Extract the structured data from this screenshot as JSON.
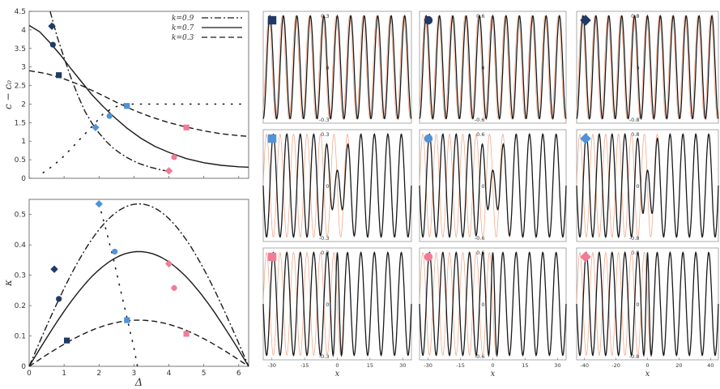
{
  "colors": {
    "dark_navy": "#1f3a68",
    "light_blue": "#4f93d8",
    "pink": "#f07c96",
    "curve": "#1a1a1a",
    "ref_wave": "#f0a080"
  },
  "chart_data": [
    {
      "id": "top-left",
      "type": "line",
      "xlim": [
        0,
        6.283
      ],
      "ylim": [
        0,
        4.5
      ],
      "ylabel": "c − c₀",
      "xticks": [
        0,
        1,
        2,
        3,
        4,
        5,
        6
      ],
      "xtick_labels": [
        "",
        "",
        "",
        "",
        "",
        "",
        ""
      ],
      "yticks": [
        0,
        0.5,
        1,
        1.5,
        2,
        2.5,
        3,
        3.5,
        4,
        4.5
      ],
      "ytick_labels": [
        "0",
        "0.5",
        "1",
        "1.5",
        "2",
        "2.5",
        "3",
        "3.5",
        "4",
        "4.5"
      ],
      "legend": {
        "placement": "top-right",
        "entries": [
          {
            "label": "k=0.9",
            "style": "dashdot"
          },
          {
            "label": "k=0.7",
            "style": "solid"
          },
          {
            "label": "k=0.3",
            "style": "dashed"
          }
        ]
      },
      "series": [
        {
          "style": "dashdot",
          "k": 0.9,
          "x": [
            0.6,
            0.8,
            1.0,
            1.2,
            1.4,
            1.6,
            1.8,
            2.0,
            2.2,
            2.4,
            2.6,
            2.8,
            3.0,
            3.2,
            3.5,
            3.8,
            4.0
          ],
          "y": [
            4.5,
            3.82,
            3.25,
            2.7,
            2.22,
            1.8,
            1.48,
            1.22,
            1.0,
            0.82,
            0.68,
            0.56,
            0.46,
            0.38,
            0.29,
            0.22,
            0.19
          ]
        },
        {
          "style": "solid",
          "k": 0.7,
          "x": [
            0,
            0.3,
            0.6,
            0.9,
            1.2,
            1.5,
            1.8,
            2.1,
            2.4,
            2.8,
            3.2,
            3.6,
            4.0,
            4.5,
            5.0,
            5.5,
            6.0,
            6.28
          ],
          "y": [
            4.12,
            3.95,
            3.65,
            3.32,
            2.95,
            2.6,
            2.25,
            1.95,
            1.68,
            1.35,
            1.08,
            0.86,
            0.7,
            0.53,
            0.42,
            0.35,
            0.31,
            0.3
          ]
        },
        {
          "style": "dashed",
          "k": 0.3,
          "x": [
            0,
            0.5,
            1.0,
            1.5,
            2.0,
            2.5,
            3.0,
            3.5,
            4.0,
            4.5,
            5.0,
            5.5,
            6.0,
            6.28
          ],
          "y": [
            2.9,
            2.82,
            2.68,
            2.5,
            2.28,
            2.05,
            1.83,
            1.65,
            1.5,
            1.38,
            1.28,
            1.2,
            1.15,
            1.13
          ]
        },
        {
          "style": "dotted",
          "x": [
            0.4,
            0.7,
            1.0,
            1.3,
            1.6,
            1.9,
            2.1,
            2.4,
            2.7,
            3.0,
            3.4,
            3.8,
            4.2,
            4.6,
            5.0,
            5.4,
            5.8,
            6.2
          ],
          "y": [
            0.15,
            0.35,
            0.6,
            0.9,
            1.2,
            1.5,
            1.72,
            1.9,
            2.0,
            2.0,
            2.0,
            2.0,
            2.0,
            2.0,
            2.0,
            2.0,
            2.0,
            2.0
          ]
        }
      ],
      "markers": [
        {
          "shape": "diamond",
          "color": "dark_navy",
          "x": 0.65,
          "y": 4.1
        },
        {
          "shape": "circle",
          "color": "dark_navy",
          "x": 0.68,
          "y": 3.6
        },
        {
          "shape": "square",
          "color": "dark_navy",
          "x": 0.85,
          "y": 2.78
        },
        {
          "shape": "diamond",
          "color": "light_blue",
          "x": 1.9,
          "y": 1.37
        },
        {
          "shape": "circle",
          "color": "light_blue",
          "x": 2.3,
          "y": 1.68
        },
        {
          "shape": "square",
          "color": "light_blue",
          "x": 2.8,
          "y": 1.95
        },
        {
          "shape": "diamond",
          "color": "pink",
          "x": 4.0,
          "y": 0.2
        },
        {
          "shape": "circle",
          "color": "pink",
          "x": 4.15,
          "y": 0.57
        },
        {
          "shape": "square",
          "color": "pink",
          "x": 4.5,
          "y": 1.37
        }
      ]
    },
    {
      "id": "bottom-left",
      "type": "line",
      "xlim": [
        0,
        6.283
      ],
      "ylim": [
        0,
        0.55
      ],
      "xlabel": "Δ",
      "ylabel": "κ",
      "xticks": [
        0,
        1,
        2,
        3,
        4,
        5,
        6
      ],
      "xtick_labels": [
        "0",
        "1",
        "2",
        "3",
        "4",
        "5",
        "6"
      ],
      "yticks": [
        0,
        0.1,
        0.2,
        0.3,
        0.4,
        0.5
      ],
      "ytick_labels": [
        "0",
        "0.1",
        "0.2",
        "0.3",
        "0.4",
        "0.5"
      ],
      "series": [
        {
          "style": "dashdot",
          "k": 0.9,
          "fn": "sin_half",
          "amp": 0.535
        },
        {
          "style": "solid",
          "k": 0.7,
          "fn": "sin_half",
          "amp": 0.378
        },
        {
          "style": "dashed",
          "k": 0.3,
          "fn": "sin_half",
          "amp": 0.152
        },
        {
          "style": "dotted",
          "x": [
            2.0,
            2.2,
            2.4,
            2.6,
            2.8,
            3.0,
            3.1
          ],
          "y": [
            0.535,
            0.45,
            0.36,
            0.26,
            0.16,
            0.06,
            0.0
          ]
        }
      ],
      "markers": [
        {
          "shape": "diamond",
          "color": "dark_navy",
          "x": 0.72,
          "y": 0.32
        },
        {
          "shape": "circle",
          "color": "dark_navy",
          "x": 0.85,
          "y": 0.222
        },
        {
          "shape": "square",
          "color": "dark_navy",
          "x": 1.08,
          "y": 0.085
        },
        {
          "shape": "diamond",
          "color": "light_blue",
          "x": 2.0,
          "y": 0.535
        },
        {
          "shape": "circle",
          "color": "light_blue",
          "x": 2.45,
          "y": 0.378
        },
        {
          "shape": "square",
          "color": "light_blue",
          "x": 2.8,
          "y": 0.152
        },
        {
          "shape": "diamond",
          "color": "pink",
          "x": 4.0,
          "y": 0.338
        },
        {
          "shape": "circle",
          "color": "pink",
          "x": 4.15,
          "y": 0.258
        },
        {
          "shape": "square",
          "color": "pink",
          "x": 4.5,
          "y": 0.107
        }
      ]
    },
    {
      "id": "wave-grid",
      "type": "line",
      "xlabel": "x",
      "panels": [
        {
          "row": 0,
          "col": 0,
          "marker": "square",
          "color": "dark_navy",
          "xlim": [
            -34,
            34
          ],
          "ylim": [
            -0.3,
            0.3
          ],
          "yticks": [
            -0.3,
            0,
            0.3
          ],
          "ytick_labels": [
            "-0.3",
            "0",
            "0.3"
          ],
          "periods": 11,
          "defect": 0,
          "ref_shift": 0.18
        },
        {
          "row": 0,
          "col": 1,
          "marker": "circle",
          "color": "dark_navy",
          "xlim": [
            -34,
            34
          ],
          "ylim": [
            -0.6,
            0.6
          ],
          "yticks": [
            -0.6,
            0,
            0.6
          ],
          "ytick_labels": [
            "-0.6",
            "0",
            "0.6"
          ],
          "periods": 11,
          "defect": 0,
          "ref_shift": 0.18
        },
        {
          "row": 0,
          "col": 2,
          "marker": "diamond",
          "color": "dark_navy",
          "xlim": [
            -45,
            45
          ],
          "ylim": [
            -0.8,
            0.8
          ],
          "yticks": [
            -0.8,
            0,
            0.8
          ],
          "ytick_labels": [
            "-0.8",
            "0",
            "0.8"
          ],
          "periods": 11,
          "defect": 0,
          "ref_shift": 0.18
        },
        {
          "row": 1,
          "col": 0,
          "marker": "square",
          "color": "light_blue",
          "xlim": [
            -34,
            34
          ],
          "ylim": [
            -0.3,
            0.3
          ],
          "yticks": [
            -0.3,
            0,
            0.3
          ],
          "ytick_labels": [
            "-0.3",
            "0",
            "0.3"
          ],
          "periods": 11,
          "defect": 1,
          "ref_shift": 0.5
        },
        {
          "row": 1,
          "col": 1,
          "marker": "circle",
          "color": "light_blue",
          "xlim": [
            -34,
            34
          ],
          "ylim": [
            -0.6,
            0.6
          ],
          "yticks": [
            -0.6,
            0,
            0.6
          ],
          "ytick_labels": [
            "-0.6",
            "0",
            "0.6"
          ],
          "periods": 11,
          "defect": 1,
          "ref_shift": 0.5
        },
        {
          "row": 1,
          "col": 2,
          "marker": "diamond",
          "color": "light_blue",
          "xlim": [
            -45,
            45
          ],
          "ylim": [
            -0.8,
            0.8
          ],
          "yticks": [
            -0.8,
            0,
            0.8
          ],
          "ytick_labels": [
            "-0.8",
            "0",
            "0.8"
          ],
          "periods": 11,
          "defect": 1,
          "ref_shift": 0.5
        },
        {
          "row": 2,
          "col": 0,
          "marker": "square",
          "color": "pink",
          "xlim": [
            -34,
            34
          ],
          "ylim": [
            -0.3,
            0.3
          ],
          "yticks": [
            -0.3,
            0,
            0.3
          ],
          "ytick_labels": [
            "-0.3",
            "0",
            "0.3"
          ],
          "xticks": [
            -30,
            -15,
            0,
            15,
            30
          ],
          "xtick_labels": [
            "-30",
            "-15",
            "0",
            "15",
            "30"
          ],
          "periods": 11,
          "defect": 2,
          "ref_shift": 0.5
        },
        {
          "row": 2,
          "col": 1,
          "marker": "circle",
          "color": "pink",
          "xlim": [
            -34,
            34
          ],
          "ylim": [
            -0.6,
            0.6
          ],
          "yticks": [
            -0.6,
            0,
            0.6
          ],
          "ytick_labels": [
            "-0.6",
            "0",
            "0.6"
          ],
          "xticks": [
            -30,
            -15,
            0,
            15,
            30
          ],
          "xtick_labels": [
            "-30",
            "-15",
            "0",
            "15",
            "30"
          ],
          "periods": 11,
          "defect": 2,
          "ref_shift": 0.5
        },
        {
          "row": 2,
          "col": 2,
          "marker": "diamond",
          "color": "pink",
          "xlim": [
            -45,
            45
          ],
          "ylim": [
            -0.8,
            0.8
          ],
          "yticks": [
            -0.8,
            0,
            0.8
          ],
          "ytick_labels": [
            "-0.8",
            "0",
            "0.8"
          ],
          "xticks": [
            -40,
            -20,
            0,
            20,
            40
          ],
          "xtick_labels": [
            "-40",
            "-20",
            "0",
            "20",
            "40"
          ],
          "periods": 11,
          "defect": 2,
          "ref_shift": 0.5
        }
      ]
    }
  ]
}
